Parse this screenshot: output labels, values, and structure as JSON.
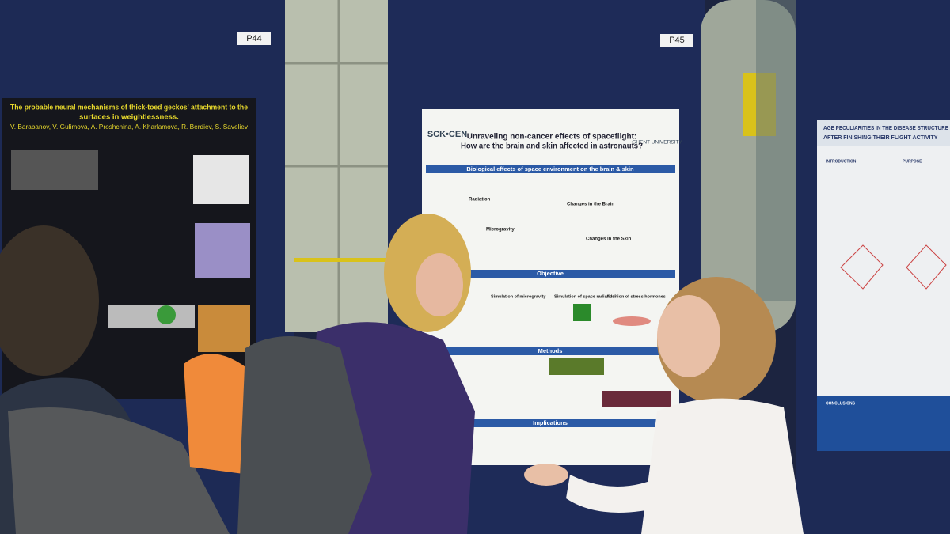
{
  "boards": {
    "left_label": "P44",
    "center_label": "P45"
  },
  "poster_left": {
    "title_lines": [
      "The probable neural mechanisms of thick-toed geckos' attachment to the",
      "surfaces in weightlessness."
    ],
    "authors": "V. Barabanov, V. Gulimova, A. Proshchina, A. Kharlamova, R. Berdiev, S. Saveliev"
  },
  "poster_center": {
    "logo_left": "SCK•CEN",
    "logo_right": "GHENT UNIVERSITY",
    "title_lines": [
      "Unraveling non-cancer effects of spaceflight:",
      "How are the brain and skin affected in astronauts?"
    ],
    "sections": [
      "Biological effects of space environment on the brain & skin",
      "Objective",
      "Methods",
      "Implications"
    ],
    "subheads": [
      "Radiation",
      "Microgravity",
      "Changes in the Brain",
      "Changes in the Skin",
      "Simulation of microgravity",
      "Simulation of space radiation",
      "Addition of stress hormones"
    ]
  },
  "poster_right": {
    "title_lines": [
      "AGE PECULIARITIES IN THE DISEASE STRUCTURE",
      "AFTER FINISHING THEIR FLIGHT ACTIVITY"
    ],
    "sections": [
      "INTRODUCTION",
      "PURPOSE",
      "CONCLUSIONS"
    ]
  }
}
